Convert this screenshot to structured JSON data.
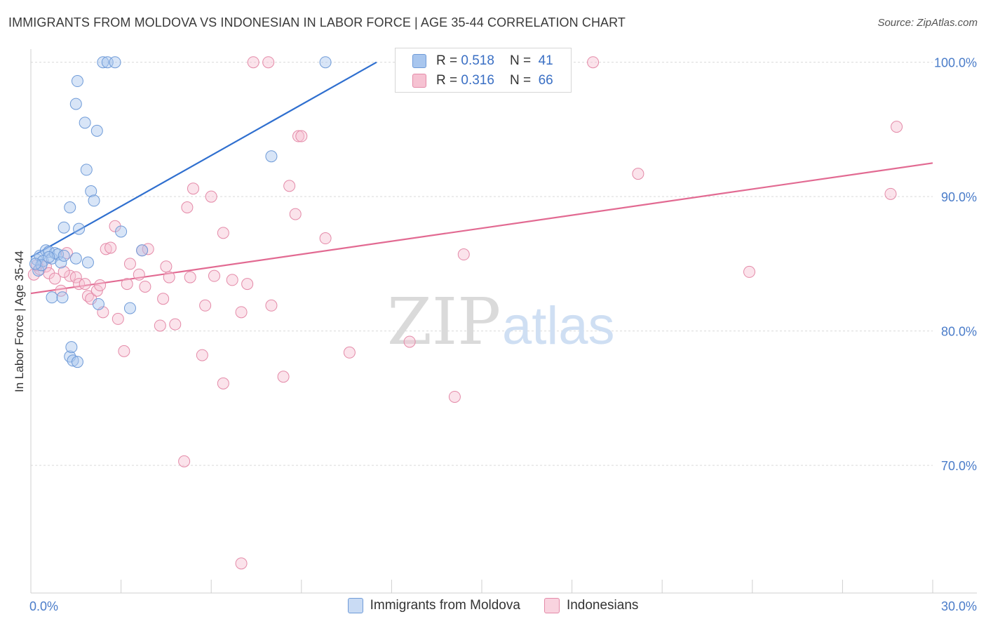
{
  "title": "IMMIGRANTS FROM MOLDOVA VS INDONESIAN IN LABOR FORCE | AGE 35-44 CORRELATION CHART",
  "source": "Source: ZipAtlas.com",
  "watermark": {
    "zip": "ZIP",
    "atlas": "atlas"
  },
  "legend": {
    "r_label": "R =",
    "n_label": "N =",
    "rows": [
      {
        "r": "0.518",
        "n": "41",
        "color": "#a8c6ee",
        "border": "#6f9bd8"
      },
      {
        "r": "0.316",
        "n": "66",
        "color": "#f6c2d2",
        "border": "#e48aa8"
      }
    ]
  },
  "bottom_legend": [
    {
      "label": "Immigrants from Moldova",
      "color": "#c9dbf4",
      "border": "#6f9bd8"
    },
    {
      "label": "Indonesians",
      "color": "#f9d3df",
      "border": "#e48aa8"
    }
  ],
  "chart_data": {
    "type": "scatter",
    "title": "IMMIGRANTS FROM MOLDOVA VS INDONESIAN IN LABOR FORCE | AGE 35-44 CORRELATION CHART",
    "xlabel": "",
    "ylabel": "In Labor Force | Age 35-44",
    "xlim": [
      0,
      30
    ],
    "ylim": [
      60.5,
      101.5
    ],
    "x_tick_labels": [
      {
        "value": 0,
        "label": "0.0%"
      },
      {
        "value": 30,
        "label": "30.0%"
      }
    ],
    "y_tick_labels": [
      {
        "value": 100,
        "label": "100.0%"
      },
      {
        "value": 90,
        "label": "90.0%"
      },
      {
        "value": 80,
        "label": "80.0%"
      },
      {
        "value": 70,
        "label": "70.0%"
      }
    ],
    "y_gridlines": [
      100,
      90,
      80,
      70
    ],
    "x_minor_ticks": [
      3,
      6,
      9,
      12,
      15,
      18,
      21,
      24,
      27,
      30
    ],
    "series": [
      {
        "name": "Immigrants from Moldova",
        "color": "#6f9bd8",
        "fill": "rgba(168,198,238,0.45)",
        "trend": {
          "x": [
            0,
            11.5
          ],
          "y": [
            85.5,
            100.0
          ],
          "color": "#2f6fcf"
        },
        "points": [
          [
            0.2,
            85.3
          ],
          [
            0.3,
            85.6
          ],
          [
            0.4,
            85.2
          ],
          [
            0.5,
            86.0
          ],
          [
            0.6,
            85.9
          ],
          [
            0.7,
            85.4
          ],
          [
            0.8,
            85.8
          ],
          [
            0.9,
            85.7
          ],
          [
            1.0,
            85.1
          ],
          [
            1.1,
            85.6
          ],
          [
            0.25,
            84.5
          ],
          [
            0.35,
            84.9
          ],
          [
            0.7,
            82.5
          ],
          [
            1.05,
            82.5
          ],
          [
            1.1,
            87.7
          ],
          [
            1.3,
            89.2
          ],
          [
            1.5,
            85.4
          ],
          [
            1.6,
            87.6
          ],
          [
            1.55,
            98.6
          ],
          [
            1.5,
            96.9
          ],
          [
            1.8,
            95.5
          ],
          [
            2.2,
            94.9
          ],
          [
            1.85,
            92.0
          ],
          [
            2.0,
            90.4
          ],
          [
            2.1,
            89.7
          ],
          [
            1.9,
            85.1
          ],
          [
            2.25,
            82.0
          ],
          [
            2.4,
            100.0
          ],
          [
            2.55,
            100.0
          ],
          [
            2.8,
            100.0
          ],
          [
            3.0,
            87.4
          ],
          [
            3.3,
            81.7
          ],
          [
            3.7,
            86.0
          ],
          [
            8.0,
            93.0
          ],
          [
            9.8,
            100.0
          ],
          [
            1.3,
            78.1
          ],
          [
            1.35,
            78.8
          ],
          [
            1.4,
            77.8
          ],
          [
            1.55,
            77.7
          ],
          [
            0.15,
            85.0
          ],
          [
            0.6,
            85.5
          ]
        ]
      },
      {
        "name": "Indonesians",
        "color": "#e48aa8",
        "fill": "rgba(246,194,210,0.45)",
        "trend": {
          "x": [
            0,
            30
          ],
          "y": [
            82.8,
            92.5
          ],
          "color": "#e26a92"
        },
        "points": [
          [
            0.1,
            84.2
          ],
          [
            0.3,
            84.6
          ],
          [
            0.5,
            84.8
          ],
          [
            0.6,
            84.3
          ],
          [
            0.8,
            83.9
          ],
          [
            1.0,
            83.0
          ],
          [
            1.2,
            85.8
          ],
          [
            1.3,
            84.1
          ],
          [
            1.5,
            84.0
          ],
          [
            1.6,
            83.5
          ],
          [
            1.8,
            83.5
          ],
          [
            1.9,
            82.6
          ],
          [
            2.0,
            82.4
          ],
          [
            2.2,
            83.0
          ],
          [
            2.3,
            83.4
          ],
          [
            2.4,
            81.4
          ],
          [
            2.5,
            86.1
          ],
          [
            2.65,
            86.2
          ],
          [
            2.8,
            87.8
          ],
          [
            2.9,
            80.9
          ],
          [
            3.1,
            78.5
          ],
          [
            3.2,
            83.5
          ],
          [
            3.3,
            85.0
          ],
          [
            3.6,
            84.2
          ],
          [
            3.7,
            86.0
          ],
          [
            3.8,
            83.3
          ],
          [
            3.9,
            86.1
          ],
          [
            4.3,
            80.4
          ],
          [
            4.4,
            82.4
          ],
          [
            4.5,
            84.8
          ],
          [
            4.6,
            84.0
          ],
          [
            4.8,
            80.5
          ],
          [
            5.1,
            70.3
          ],
          [
            5.2,
            89.2
          ],
          [
            5.3,
            84.0
          ],
          [
            5.4,
            90.6
          ],
          [
            5.7,
            78.2
          ],
          [
            5.8,
            81.9
          ],
          [
            6.0,
            90.0
          ],
          [
            6.1,
            84.1
          ],
          [
            6.4,
            87.3
          ],
          [
            6.4,
            76.1
          ],
          [
            6.7,
            83.8
          ],
          [
            7.0,
            81.4
          ],
          [
            7.0,
            62.7
          ],
          [
            7.2,
            83.5
          ],
          [
            7.4,
            100.0
          ],
          [
            7.9,
            100.0
          ],
          [
            8.0,
            81.9
          ],
          [
            8.4,
            76.6
          ],
          [
            8.6,
            90.8
          ],
          [
            8.8,
            88.7
          ],
          [
            8.9,
            94.5
          ],
          [
            9.0,
            94.5
          ],
          [
            9.8,
            86.9
          ],
          [
            10.6,
            78.4
          ],
          [
            12.6,
            79.2
          ],
          [
            14.1,
            75.1
          ],
          [
            14.4,
            85.7
          ],
          [
            18.7,
            100.0
          ],
          [
            20.2,
            91.7
          ],
          [
            23.9,
            84.4
          ],
          [
            28.6,
            90.2
          ],
          [
            28.8,
            95.2
          ],
          [
            0.2,
            84.9
          ],
          [
            1.1,
            84.4
          ]
        ]
      }
    ]
  }
}
